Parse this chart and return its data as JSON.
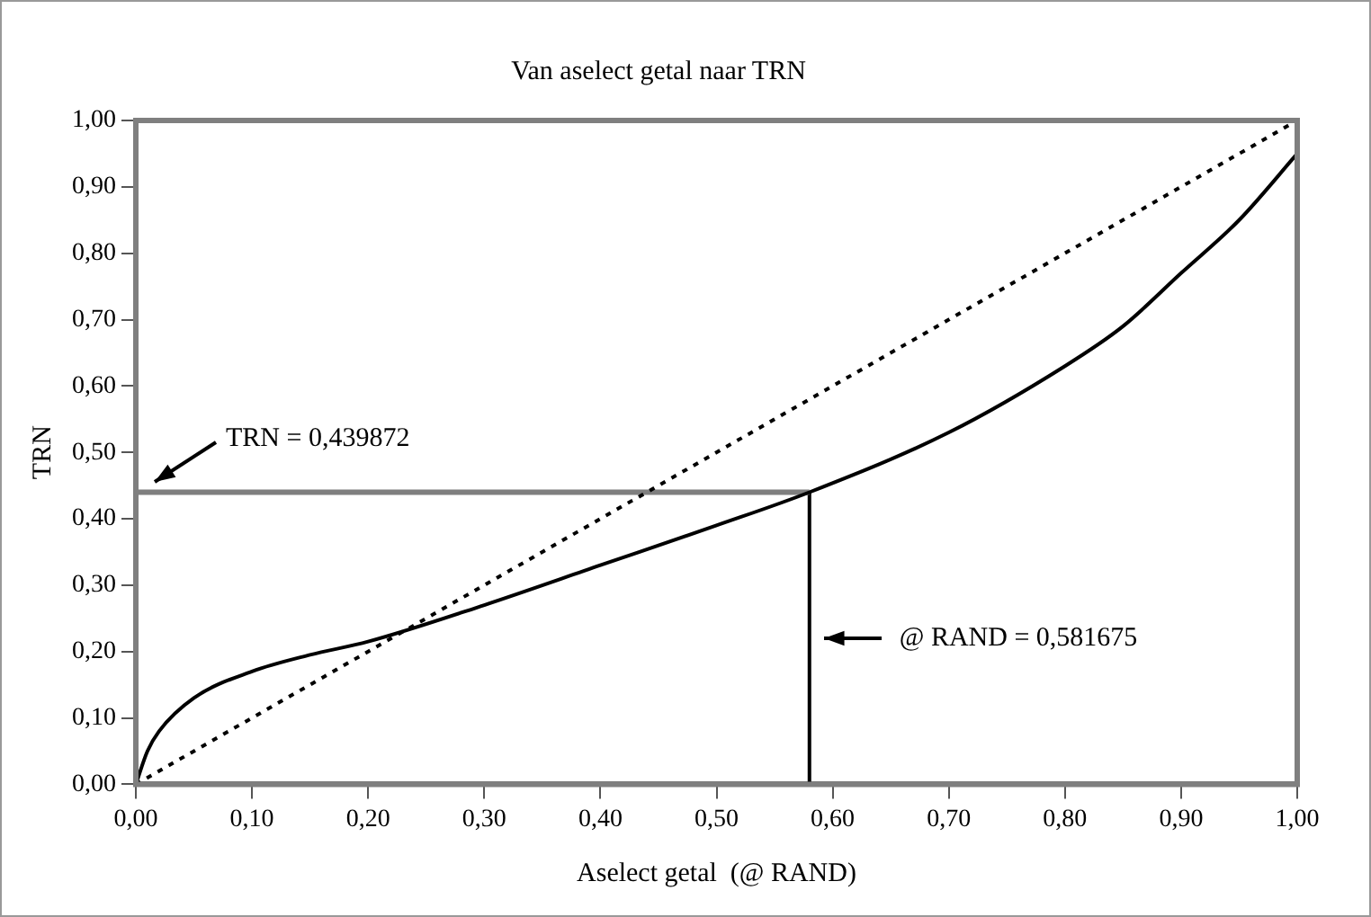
{
  "chart_data": {
    "type": "line",
    "title": "Van aselect getal naar TRN",
    "xlabel": "Aselect getal  (@ RAND)",
    "ylabel": "TRN",
    "series": [
      {
        "color": "#000000",
        "x": [
          0,
          0.01,
          0.02,
          0.05,
          0.1,
          0.15,
          0.2,
          0.3,
          0.4,
          0.5,
          0.58,
          0.7,
          0.8,
          0.85,
          0.9,
          0.95,
          1
        ],
        "values": [
          0,
          0.05,
          0.08,
          0.13,
          0.17,
          0.195,
          0.215,
          0.27,
          0.33,
          0.39,
          0.44,
          0.53,
          0.63,
          0.69,
          0.77,
          0.85,
          0.95
        ]
      },
      {
        "color": "#000000",
        "line_style": "dotted",
        "x": [
          0,
          1
        ],
        "values": [
          0,
          1
        ]
      },
      {
        "color": "#7f7f7f",
        "x": [
          0,
          0.58
        ],
        "values": [
          0.44,
          0.44
        ]
      },
      {
        "color": "#000000",
        "x": [
          0.58,
          0.58
        ],
        "values": [
          0,
          0.44
        ]
      }
    ],
    "annotations": [
      "TRN = 0,439872",
      "@ RAND = 0,581675"
    ],
    "xlim": [
      0,
      1
    ],
    "ylim": [
      0,
      1
    ],
    "xticks": [
      {
        "value": 0,
        "label": "0,00"
      },
      {
        "value": 0.1,
        "label": "0,10"
      },
      {
        "value": 0.2,
        "label": "0,20"
      },
      {
        "value": 0.3,
        "label": "0,30"
      },
      {
        "value": 0.4,
        "label": "0,40"
      },
      {
        "value": 0.5,
        "label": "0,50"
      },
      {
        "value": 0.6,
        "label": "0,60"
      },
      {
        "value": 0.7,
        "label": "0,70"
      },
      {
        "value": 0.8,
        "label": "0,80"
      },
      {
        "value": 0.9,
        "label": "0,90"
      },
      {
        "value": 1,
        "label": "1,00"
      }
    ],
    "yticks": [
      {
        "value": 0,
        "label": "0,00"
      },
      {
        "value": 0.1,
        "label": "0,10"
      },
      {
        "value": 0.2,
        "label": "0,20"
      },
      {
        "value": 0.3,
        "label": "0,30"
      },
      {
        "value": 0.4,
        "label": "0,40"
      },
      {
        "value": 0.5,
        "label": "0,50"
      },
      {
        "value": 0.6,
        "label": "0,60"
      },
      {
        "value": 0.7,
        "label": "0,70"
      },
      {
        "value": 0.8,
        "label": "0,80"
      },
      {
        "value": 0.9,
        "label": "0,90"
      },
      {
        "value": 1,
        "label": "1,00"
      }
    ],
    "grid": false,
    "legend": false,
    "marker": "none"
  }
}
